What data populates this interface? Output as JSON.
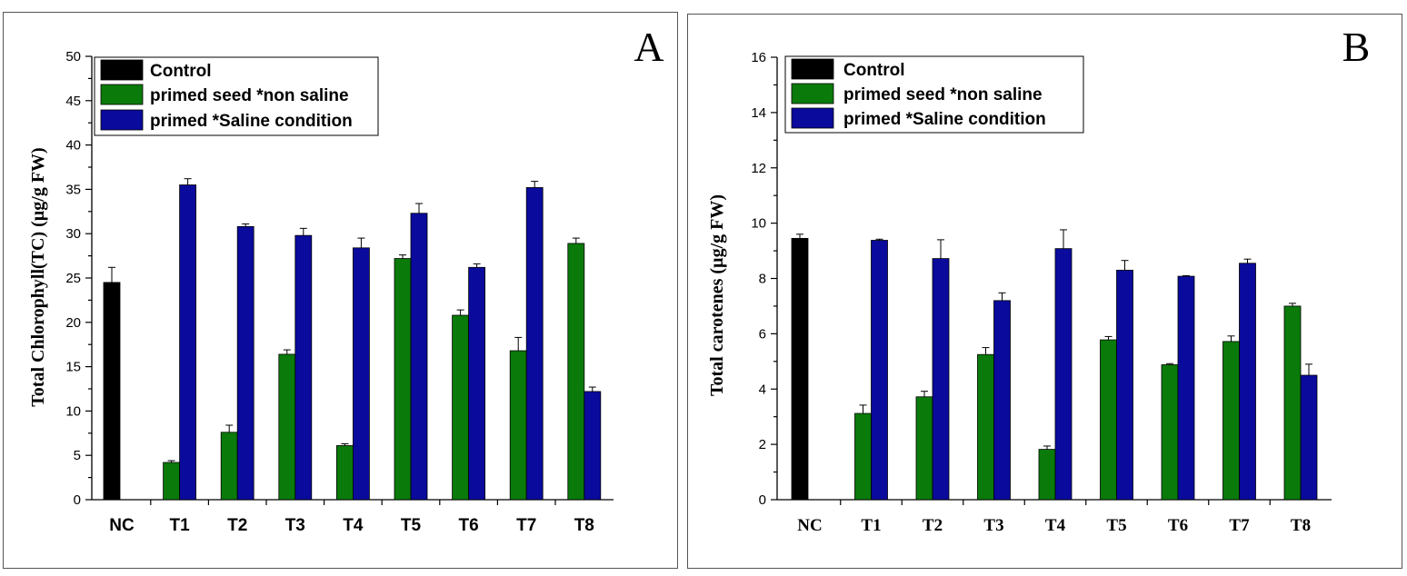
{
  "colors": {
    "Control": "#000000",
    "primed seed *non saline": "#0a7a0a",
    "primed *Saline condition": "#0a0a9c"
  },
  "chart_data": [
    {
      "type": "bar",
      "panel": "A",
      "ylabel": "Total Chlorophyll(TC) (µg/g FW)",
      "xlabel": "",
      "ylim": [
        0,
        50
      ],
      "yticks": [
        0,
        5,
        10,
        15,
        20,
        25,
        30,
        35,
        40,
        45,
        50
      ],
      "categories": [
        "NC",
        "T1",
        "T2",
        "T3",
        "T4",
        "T5",
        "T6",
        "T7",
        "T8"
      ],
      "legend_position": "top-left",
      "series": [
        {
          "name": "Control",
          "values": [
            24.5,
            null,
            null,
            null,
            null,
            null,
            null,
            null,
            null
          ],
          "errors": [
            1.7,
            null,
            null,
            null,
            null,
            null,
            null,
            null,
            null
          ]
        },
        {
          "name": "primed seed *non saline",
          "values": [
            null,
            4.2,
            7.6,
            16.4,
            6.1,
            27.2,
            20.8,
            16.8,
            28.9
          ],
          "errors": [
            null,
            0.2,
            0.8,
            0.5,
            0.2,
            0.4,
            0.6,
            1.5,
            0.6
          ]
        },
        {
          "name": "primed *Saline condition",
          "values": [
            null,
            35.5,
            30.8,
            29.8,
            28.4,
            32.3,
            26.2,
            35.2,
            12.2
          ],
          "errors": [
            null,
            0.7,
            0.3,
            0.8,
            1.1,
            1.1,
            0.4,
            0.7,
            0.5
          ]
        }
      ]
    },
    {
      "type": "bar",
      "panel": "B",
      "ylabel": "Total carotenes (µg/g FW)",
      "xlabel": "",
      "ylim": [
        0,
        16
      ],
      "yticks": [
        0,
        2,
        4,
        6,
        8,
        10,
        12,
        14,
        16
      ],
      "categories": [
        "NC",
        "T1",
        "T2",
        "T3",
        "T4",
        "T5",
        "T6",
        "T7",
        "T8"
      ],
      "legend_position": "top-left",
      "series": [
        {
          "name": "Control",
          "values": [
            9.45,
            null,
            null,
            null,
            null,
            null,
            null,
            null,
            null
          ],
          "errors": [
            0.15,
            null,
            null,
            null,
            null,
            null,
            null,
            null,
            null
          ]
        },
        {
          "name": "primed seed *non saline",
          "values": [
            null,
            3.12,
            3.72,
            5.25,
            1.82,
            5.78,
            4.88,
            5.72,
            7.0
          ],
          "errors": [
            null,
            0.3,
            0.2,
            0.25,
            0.12,
            0.12,
            0.04,
            0.2,
            0.1
          ]
        },
        {
          "name": "primed *Saline condition",
          "values": [
            null,
            9.38,
            8.72,
            7.2,
            9.08,
            8.3,
            8.08,
            8.55,
            4.5
          ],
          "errors": [
            null,
            0.04,
            0.68,
            0.28,
            0.68,
            0.35,
            0.02,
            0.15,
            0.4
          ]
        }
      ]
    }
  ]
}
